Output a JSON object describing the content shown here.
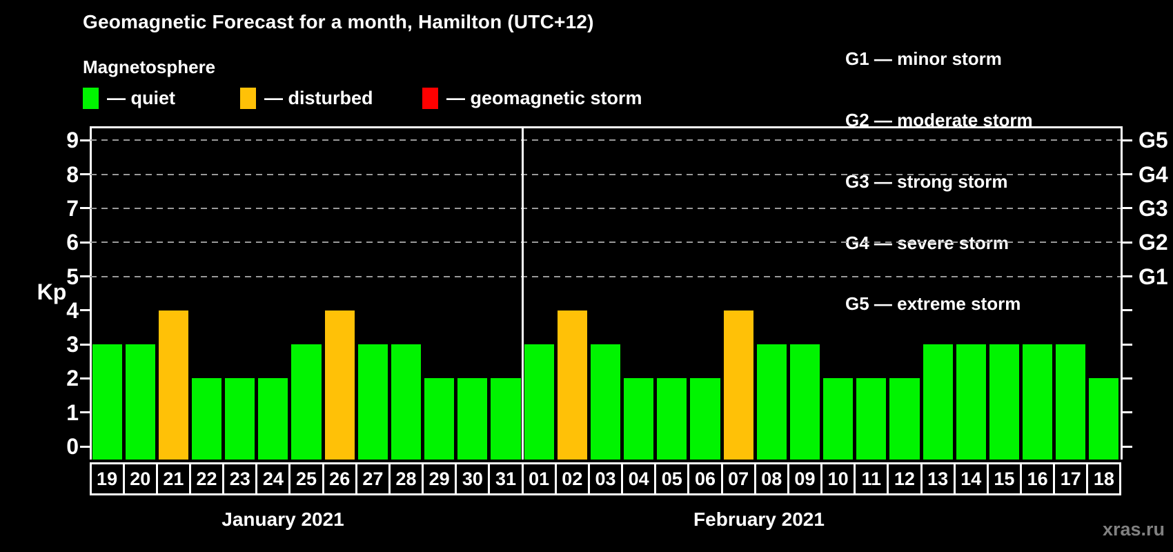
{
  "header": {
    "title": "Geomagnetic Forecast for a month, Hamilton (UTC+12)",
    "subtitle": "Magnetosphere"
  },
  "legend": {
    "items": [
      {
        "name": "quiet",
        "label": "— quiet",
        "color": "#00f400"
      },
      {
        "name": "disturbed",
        "label": "— disturbed",
        "color": "#ffc107"
      },
      {
        "name": "geomagnetic-storm",
        "label": "— geomagnetic storm",
        "color": "#ff0000"
      }
    ]
  },
  "g_scale_legend": {
    "items": [
      {
        "code": "G1",
        "label": "G1 — minor storm"
      },
      {
        "code": "G2",
        "label": "G2 — moderate storm"
      },
      {
        "code": "G3",
        "label": "G3 — strong storm"
      },
      {
        "code": "G4",
        "label": "G4 — severe storm"
      },
      {
        "code": "G5",
        "label": "G5 — extreme storm"
      }
    ]
  },
  "watermark": "xras.ru",
  "chart_data": {
    "type": "bar",
    "title": "Geomagnetic Forecast for a month, Hamilton (UTC+12)",
    "ylabel": "Kp",
    "ylim": [
      0,
      9
    ],
    "y_ticks": [
      0,
      1,
      2,
      3,
      4,
      5,
      6,
      7,
      8,
      9
    ],
    "gridlines_at": [
      5,
      6,
      7,
      8,
      9
    ],
    "grid_style": "dashed gray horizontal lines at storm thresholds",
    "legend_position": "top",
    "right_axis": {
      "labels": [
        {
          "kp": 5,
          "label": "G1"
        },
        {
          "kp": 6,
          "label": "G2"
        },
        {
          "kp": 7,
          "label": "G3"
        },
        {
          "kp": 8,
          "label": "G4"
        },
        {
          "kp": 9,
          "label": "G5"
        }
      ]
    },
    "status_colors": {
      "quiet": "#00f400",
      "disturbed": "#ffc107",
      "storm": "#ff0000"
    },
    "months": [
      {
        "label": "January 2021",
        "days": [
          "19",
          "20",
          "21",
          "22",
          "23",
          "24",
          "25",
          "26",
          "27",
          "28",
          "29",
          "30",
          "31"
        ],
        "values": [
          3,
          3,
          4,
          2,
          2,
          2,
          3,
          4,
          3,
          3,
          2,
          2,
          2
        ],
        "status": [
          "quiet",
          "quiet",
          "disturbed",
          "quiet",
          "quiet",
          "quiet",
          "quiet",
          "disturbed",
          "quiet",
          "quiet",
          "quiet",
          "quiet",
          "quiet"
        ]
      },
      {
        "label": "February 2021",
        "days": [
          "01",
          "02",
          "03",
          "04",
          "05",
          "06",
          "07",
          "08",
          "09",
          "10",
          "11",
          "12",
          "13",
          "14",
          "15",
          "16",
          "17",
          "18"
        ],
        "values": [
          3,
          4,
          3,
          2,
          2,
          2,
          4,
          3,
          3,
          2,
          2,
          2,
          3,
          3,
          3,
          3,
          3,
          2
        ],
        "status": [
          "quiet",
          "disturbed",
          "quiet",
          "quiet",
          "quiet",
          "quiet",
          "disturbed",
          "quiet",
          "quiet",
          "quiet",
          "quiet",
          "quiet",
          "quiet",
          "quiet",
          "quiet",
          "quiet",
          "quiet",
          "quiet"
        ]
      }
    ]
  }
}
